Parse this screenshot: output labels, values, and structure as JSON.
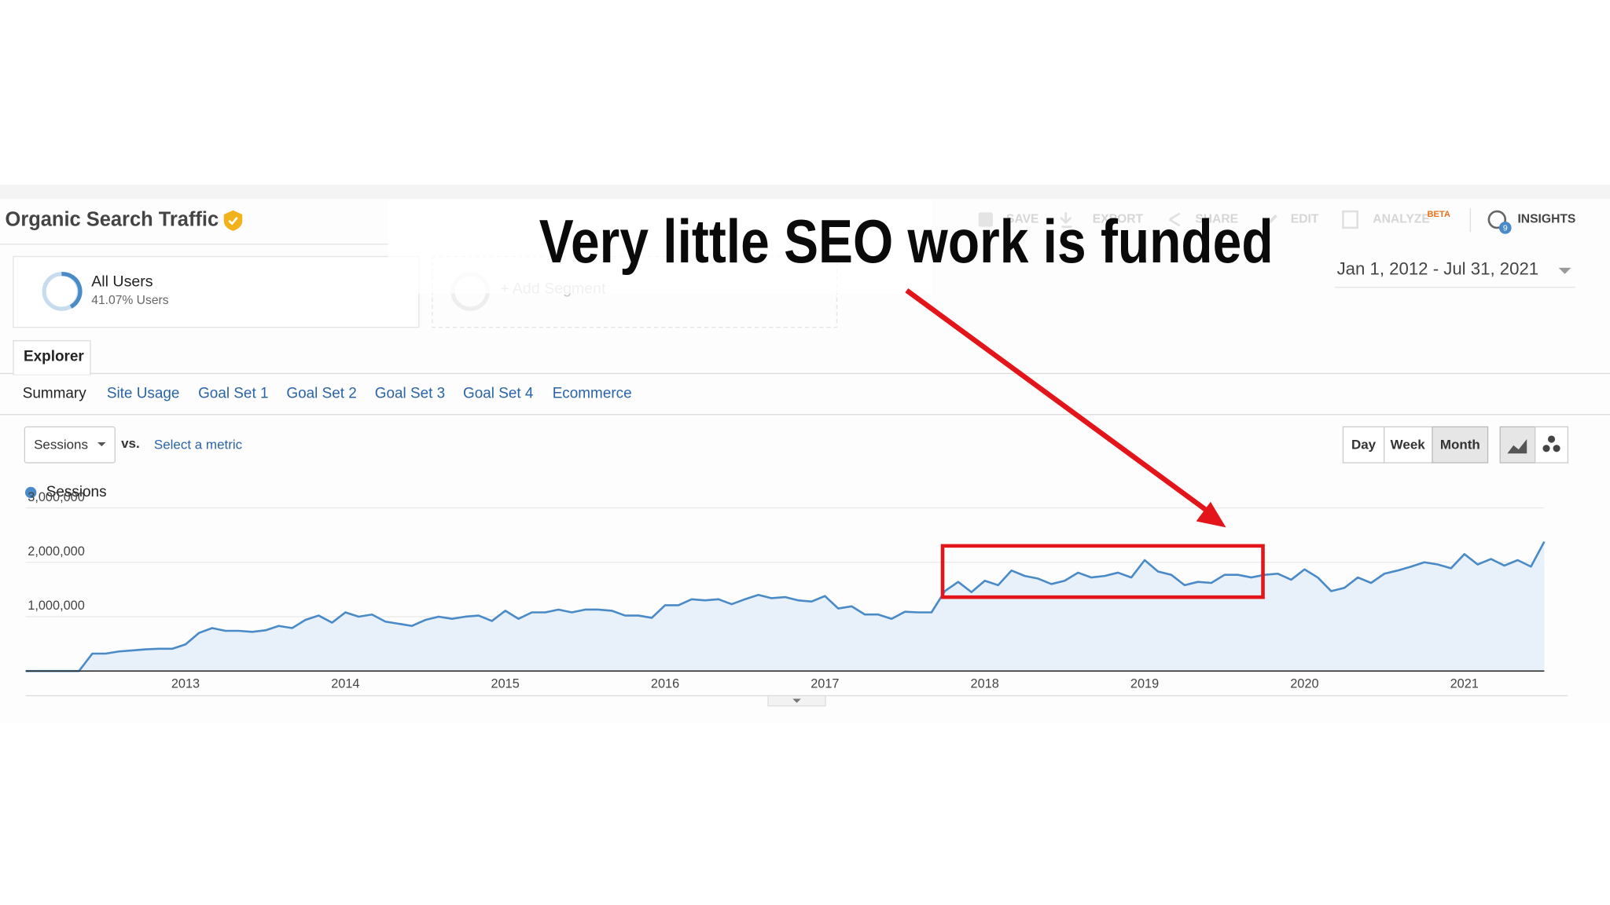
{
  "header": {
    "title": "Organic Search Traffic",
    "actions": [
      "SAVE",
      "EXPORT",
      "SHARE",
      "EDIT",
      "ANALYZE"
    ],
    "beta": "BETA",
    "insights": "INSIGHTS",
    "insights_badge": 9
  },
  "segments": [
    {
      "name": "All Users",
      "detail": "41.07% Users"
    }
  ],
  "add_segment": "+ Add Segment",
  "date_range": "Jan 1, 2012 - Jul 31, 2021",
  "report_tab": "Explorer",
  "subtabs": [
    "Summary",
    "Site Usage",
    "Goal Set 1",
    "Goal Set 2",
    "Goal Set 3",
    "Goal Set 4",
    "Ecommerce"
  ],
  "metric_select": "Sessions",
  "vs": "vs.",
  "select_metric": "Select a metric",
  "granularity": [
    "Day",
    "Week",
    "Month"
  ],
  "annotation": {
    "title": "Very little SEO work is funded"
  },
  "chart_data": {
    "type": "line",
    "categories": [
      null,
      null,
      null,
      null,
      null,
      null,
      null,
      null,
      null,
      null,
      null,
      null,
      "2013",
      null,
      null,
      null,
      null,
      null,
      null,
      null,
      null,
      null,
      null,
      null,
      "2014",
      null,
      null,
      null,
      null,
      null,
      null,
      null,
      null,
      null,
      null,
      null,
      "2015",
      null,
      null,
      null,
      null,
      null,
      null,
      null,
      null,
      null,
      null,
      null,
      "2016",
      null,
      null,
      null,
      null,
      null,
      null,
      null,
      null,
      null,
      null,
      null,
      "2017",
      null,
      null,
      null,
      null,
      null,
      null,
      null,
      null,
      null,
      null,
      null,
      "2018",
      null,
      null,
      null,
      null,
      null,
      null,
      null,
      null,
      null,
      null,
      null,
      "2019",
      null,
      null,
      null,
      null,
      null,
      null,
      null,
      null,
      null,
      null,
      null,
      "2020",
      null,
      null,
      null,
      null,
      null,
      null,
      null,
      null,
      null,
      null,
      null,
      "2021",
      null,
      null,
      null,
      null,
      null,
      null
    ],
    "series": [
      {
        "name": "Sessions",
        "color": "#4a8bc7",
        "values": [
          0,
          0,
          0,
          0,
          0,
          320000,
          320000,
          360000,
          380000,
          400000,
          410000,
          410000,
          490000,
          700000,
          790000,
          740000,
          740000,
          720000,
          750000,
          830000,
          790000,
          940000,
          1020000,
          890000,
          1080000,
          1000000,
          1040000,
          910000,
          870000,
          830000,
          940000,
          1000000,
          960000,
          1000000,
          1020000,
          920000,
          1110000,
          960000,
          1080000,
          1080000,
          1130000,
          1080000,
          1130000,
          1130000,
          1110000,
          1020000,
          1020000,
          980000,
          1210000,
          1210000,
          1320000,
          1300000,
          1320000,
          1230000,
          1320000,
          1400000,
          1340000,
          1360000,
          1300000,
          1280000,
          1380000,
          1150000,
          1190000,
          1040000,
          1040000,
          960000,
          1090000,
          1080000,
          1080000,
          1470000,
          1640000,
          1450000,
          1660000,
          1580000,
          1850000,
          1750000,
          1700000,
          1600000,
          1660000,
          1810000,
          1720000,
          1750000,
          1810000,
          1720000,
          2040000,
          1830000,
          1770000,
          1580000,
          1640000,
          1620000,
          1770000,
          1770000,
          1720000,
          1770000,
          1790000,
          1680000,
          1870000,
          1720000,
          1470000,
          1530000,
          1720000,
          1620000,
          1790000,
          1850000,
          1920000,
          2000000,
          1960000,
          1890000,
          2150000,
          1960000,
          2060000,
          1940000,
          2040000,
          1920000,
          2380000
        ]
      }
    ],
    "fill_color": "#e8f0f9",
    "ylim": [
      0,
      3000000
    ],
    "yticks": [
      {
        "value": 1000000,
        "label": "1,000,000"
      },
      {
        "value": 2000000,
        "label": "2,000,000"
      },
      {
        "value": 3000000,
        "label": "3,000,000"
      }
    ],
    "grid": true
  }
}
